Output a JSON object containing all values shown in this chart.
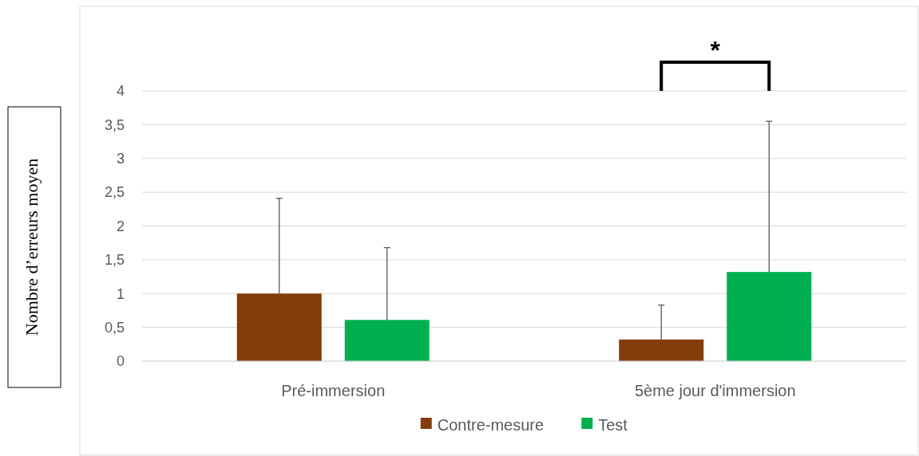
{
  "chart_data": {
    "type": "bar",
    "ylabel": "Nombre d’erreurs moyen",
    "categories": [
      "Pré-immersion",
      "5ème jour d'immersion"
    ],
    "series": [
      {
        "name": "Contre-mesure",
        "color": "#843c0c",
        "values": [
          1.0,
          0.32
        ],
        "errors": [
          [
            1.0,
            2.41
          ],
          [
            0.32,
            0.83
          ]
        ]
      },
      {
        "name": "Test",
        "color": "#00b050",
        "values": [
          0.61,
          1.32
        ],
        "errors": [
          [
            0.61,
            1.68
          ],
          [
            1.32,
            3.55
          ]
        ]
      }
    ],
    "ylim": [
      0,
      4
    ],
    "yticks": [
      0,
      {
        "value": 0.5,
        "label": "0,5"
      },
      1,
      {
        "value": 1.5,
        "label": "1,5"
      },
      2,
      {
        "value": 2.5,
        "label": "2,5"
      },
      3,
      {
        "value": 3.5,
        "label": "3,5"
      },
      4
    ],
    "grid": "y",
    "legend": "bottom",
    "annotations": [
      "*"
    ]
  }
}
